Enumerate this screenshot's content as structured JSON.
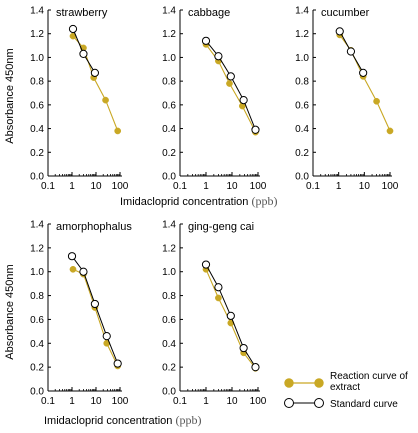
{
  "figure": {
    "ylabel": "Absorbance  450nm",
    "xlabel_text": "Imidacloprid concentration ",
    "xlabel_unit": "(ppb)",
    "colors": {
      "reaction": "#c9a824",
      "standard": "#000000"
    },
    "legend": {
      "reaction_label_line1": "Reaction curve of",
      "reaction_label_line2": "extract",
      "standard_label": "Standard curve"
    }
  },
  "chart_data": [
    {
      "type": "line",
      "title": "strawberry",
      "x_scale": "log",
      "xlim": [
        0.1,
        100
      ],
      "ylim": [
        0.0,
        1.4
      ],
      "x_ticks": [
        "0.1",
        "1",
        "10",
        "100"
      ],
      "y_ticks": [
        "0.0",
        "0.2",
        "0.4",
        "0.6",
        "0.8",
        "1.0",
        "1.2",
        "1.4"
      ],
      "series": [
        {
          "name": "Reaction curve of extract",
          "x": [
            1.1,
            3,
            8,
            25,
            80
          ],
          "y": [
            1.18,
            1.08,
            0.83,
            0.64,
            0.38
          ]
        },
        {
          "name": "Standard curve",
          "x": [
            1.1,
            3,
            9
          ],
          "y": [
            1.24,
            1.03,
            0.87
          ]
        }
      ]
    },
    {
      "type": "line",
      "title": "cabbage",
      "x_scale": "log",
      "xlim": [
        0.1,
        100
      ],
      "ylim": [
        0.0,
        1.4
      ],
      "x_ticks": [
        "0.1",
        "1",
        "10",
        "100"
      ],
      "y_ticks": [
        "0.0",
        "0.2",
        "0.4",
        "0.6",
        "0.8",
        "1.0",
        "1.2",
        "1.4"
      ],
      "series": [
        {
          "name": "Reaction curve of extract",
          "x": [
            1,
            3,
            8,
            25,
            80
          ],
          "y": [
            1.11,
            0.97,
            0.78,
            0.59,
            0.37
          ]
        },
        {
          "name": "Standard curve",
          "x": [
            1,
            3,
            9,
            28,
            80
          ],
          "y": [
            1.14,
            1.01,
            0.84,
            0.64,
            0.39
          ]
        }
      ]
    },
    {
      "type": "line",
      "title": "cucumber",
      "x_scale": "log",
      "xlim": [
        0.1,
        100
      ],
      "ylim": [
        0.0,
        1.4
      ],
      "x_ticks": [
        "0.1",
        "1",
        "10",
        "100"
      ],
      "y_ticks": [
        "0.0",
        "0.2",
        "0.4",
        "0.6",
        "0.8",
        "1.0",
        "1.2",
        "1.4"
      ],
      "series": [
        {
          "name": "Reaction curve of extract",
          "x": [
            1.1,
            3,
            9,
            30,
            100
          ],
          "y": [
            1.19,
            1.06,
            0.84,
            0.63,
            0.38
          ]
        },
        {
          "name": "Standard curve",
          "x": [
            1.1,
            3,
            9
          ],
          "y": [
            1.22,
            1.05,
            0.87
          ]
        }
      ]
    },
    {
      "type": "line",
      "title": "amorphophalus",
      "x_scale": "log",
      "xlim": [
        0.1,
        100
      ],
      "ylim": [
        0.0,
        1.4
      ],
      "x_ticks": [
        "0.1",
        "1",
        "10",
        "100"
      ],
      "y_ticks": [
        "0.0",
        "0.2",
        "0.4",
        "0.6",
        "0.8",
        "1.0",
        "1.2",
        "1.4"
      ],
      "series": [
        {
          "name": "Reaction curve of extract",
          "x": [
            1.1,
            3,
            9,
            28,
            80
          ],
          "y": [
            1.02,
            0.98,
            0.7,
            0.4,
            0.21
          ]
        },
        {
          "name": "Standard curve",
          "x": [
            1,
            3,
            9,
            28,
            80
          ],
          "y": [
            1.13,
            1.0,
            0.73,
            0.46,
            0.23
          ]
        }
      ]
    },
    {
      "type": "line",
      "title": "ging-geng cai",
      "x_scale": "log",
      "xlim": [
        0.1,
        100
      ],
      "ylim": [
        0.0,
        1.4
      ],
      "x_ticks": [
        "0.1",
        "1",
        "10",
        "100"
      ],
      "y_ticks": [
        "0.0",
        "0.2",
        "0.4",
        "0.6",
        "0.8",
        "1.0",
        "1.2",
        "1.4"
      ],
      "series": [
        {
          "name": "Reaction curve of extract",
          "x": [
            1,
            3,
            9,
            28,
            80
          ],
          "y": [
            1.02,
            0.78,
            0.57,
            0.32,
            0.19
          ]
        },
        {
          "name": "Standard curve",
          "x": [
            1,
            3,
            9,
            28,
            80
          ],
          "y": [
            1.06,
            0.87,
            0.63,
            0.36,
            0.2
          ]
        }
      ]
    }
  ]
}
